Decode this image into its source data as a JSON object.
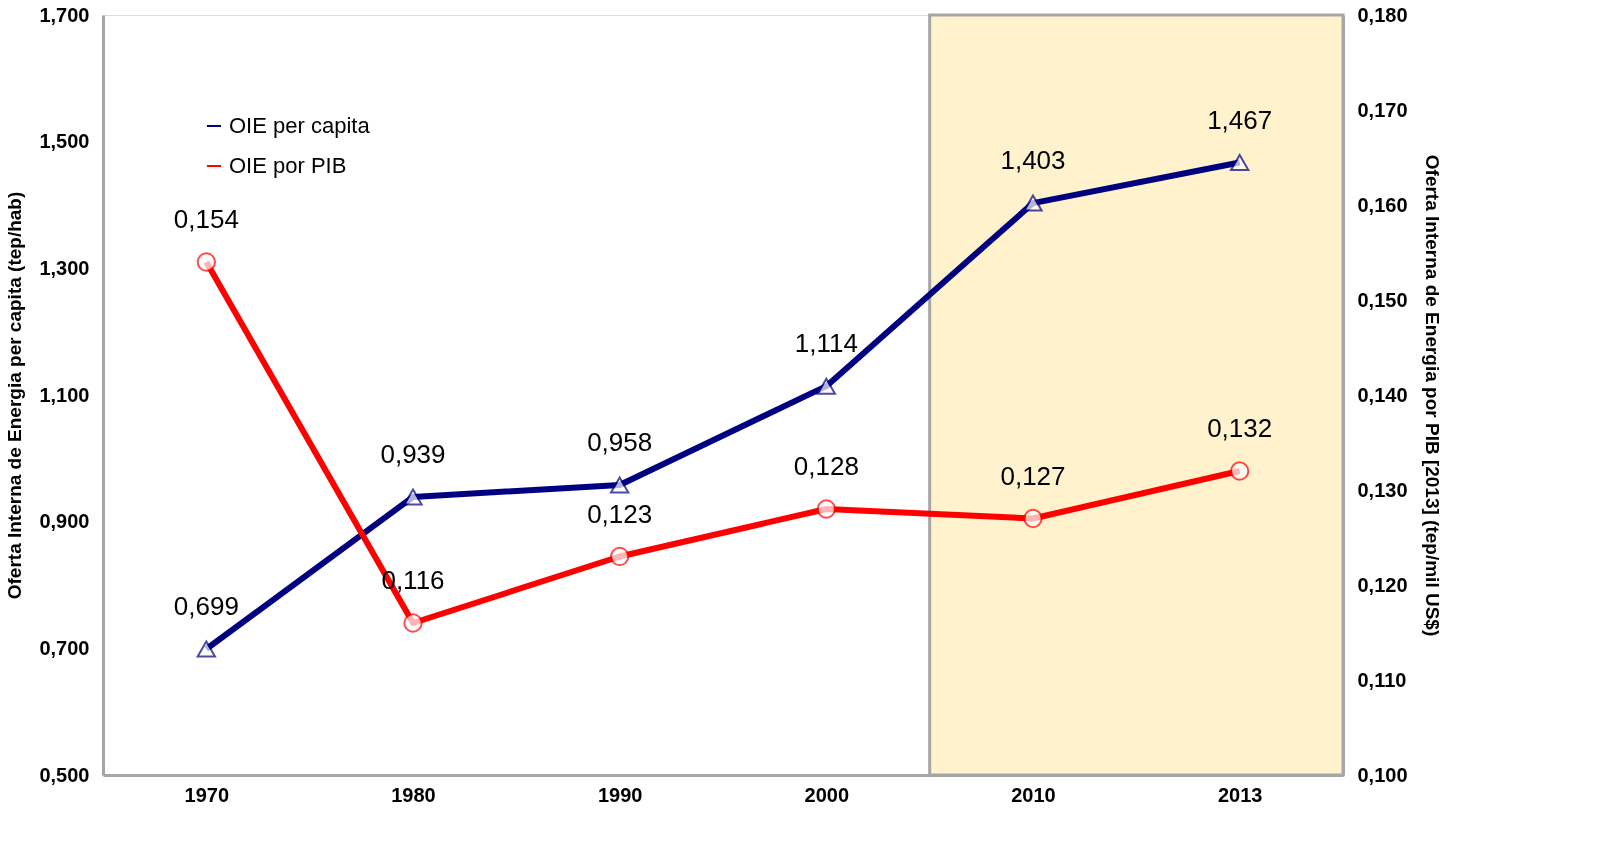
{
  "chart_data": {
    "type": "line",
    "categories": [
      "1970",
      "1980",
      "1990",
      "2000",
      "2010",
      "2013"
    ],
    "ylabel": "Oferta Interna de Energia per capita (tep/hab)",
    "y2label": "Oferta Interna de Energia por PIB [2013] (tep/mil US$)",
    "ylim": [
      0.5,
      1.7
    ],
    "yticks": [
      {
        "value": 0.5,
        "label": "0,500"
      },
      {
        "value": 0.7,
        "label": "0,700"
      },
      {
        "value": 0.9,
        "label": "0,900"
      },
      {
        "value": 1.1,
        "label": "1,100"
      },
      {
        "value": 1.3,
        "label": "1,300"
      },
      {
        "value": 1.5,
        "label": "1,500"
      },
      {
        "value": 1.7,
        "label": "1,700"
      }
    ],
    "y2lim": [
      0.1,
      0.18
    ],
    "y2ticks": [
      {
        "value": 0.1,
        "label": "0,100"
      },
      {
        "value": 0.11,
        "label": "0,110"
      },
      {
        "value": 0.12,
        "label": "0,120"
      },
      {
        "value": 0.13,
        "label": "0,130"
      },
      {
        "value": 0.14,
        "label": "0,140"
      },
      {
        "value": 0.15,
        "label": "0,150"
      },
      {
        "value": 0.16,
        "label": "0,160"
      },
      {
        "value": 0.17,
        "label": "0,170"
      },
      {
        "value": 0.18,
        "label": "0,180"
      }
    ],
    "series": [
      {
        "name": "OIE per capita",
        "color": "#000080",
        "marker": "triangle",
        "values": [
          0.699,
          0.939,
          0.958,
          1.114,
          1.403,
          1.467
        ],
        "value_labels": [
          "0,699",
          "0,939",
          "0,958",
          "1,114",
          "1,403",
          "1,467"
        ]
      },
      {
        "name": "OIE por PIB",
        "color": "#ff0000",
        "marker": "circle",
        "axis": "y2",
        "values": [
          0.154,
          0.116,
          0.123,
          0.128,
          0.127,
          0.132
        ],
        "value_labels": [
          "0,154",
          "0,116",
          "0,123",
          "0,128",
          "0,127",
          "0,132"
        ]
      }
    ],
    "bands": [
      {
        "axis": "x",
        "from": "2010",
        "to": "2013",
        "color": "#fff2cc"
      }
    ],
    "legend": "top left",
    "grid": false,
    "line_style": "solid"
  }
}
